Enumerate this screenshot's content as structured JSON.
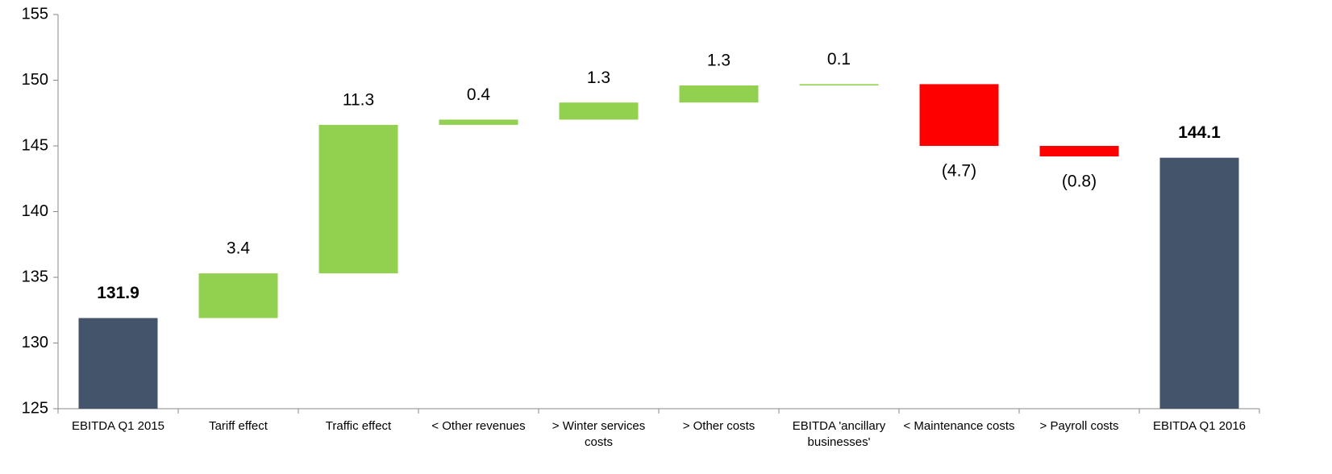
{
  "chart_data": {
    "type": "waterfall",
    "categories": [
      "EBITDA Q1 2015",
      "Tariff effect",
      "Traffic effect",
      "< Other revenues",
      "> Winter services costs",
      "> Other costs",
      "EBITDA 'ancillary businesses'",
      "< Maintenance costs",
      "> Payroll costs",
      "EBITDA Q1 2016"
    ],
    "values": [
      131.9,
      3.4,
      11.3,
      0.4,
      1.3,
      1.3,
      0.1,
      -4.7,
      -0.8,
      144.1
    ],
    "value_labels": [
      "131.9",
      "3.4",
      "11.3",
      "0.4",
      "1.3",
      "1.3",
      "0.1",
      "(4.7)",
      "(0.8)",
      "144.1"
    ],
    "measure": [
      "absolute",
      "relative",
      "relative",
      "relative",
      "relative",
      "relative",
      "relative",
      "relative",
      "relative",
      "absolute"
    ],
    "colors": {
      "absolute": "#44546a",
      "increase": "#92d050",
      "decrease": "#ff0000"
    },
    "ylim": [
      125,
      155
    ],
    "yticks": [
      125,
      130,
      135,
      140,
      145,
      150,
      155
    ],
    "grid": false
  }
}
